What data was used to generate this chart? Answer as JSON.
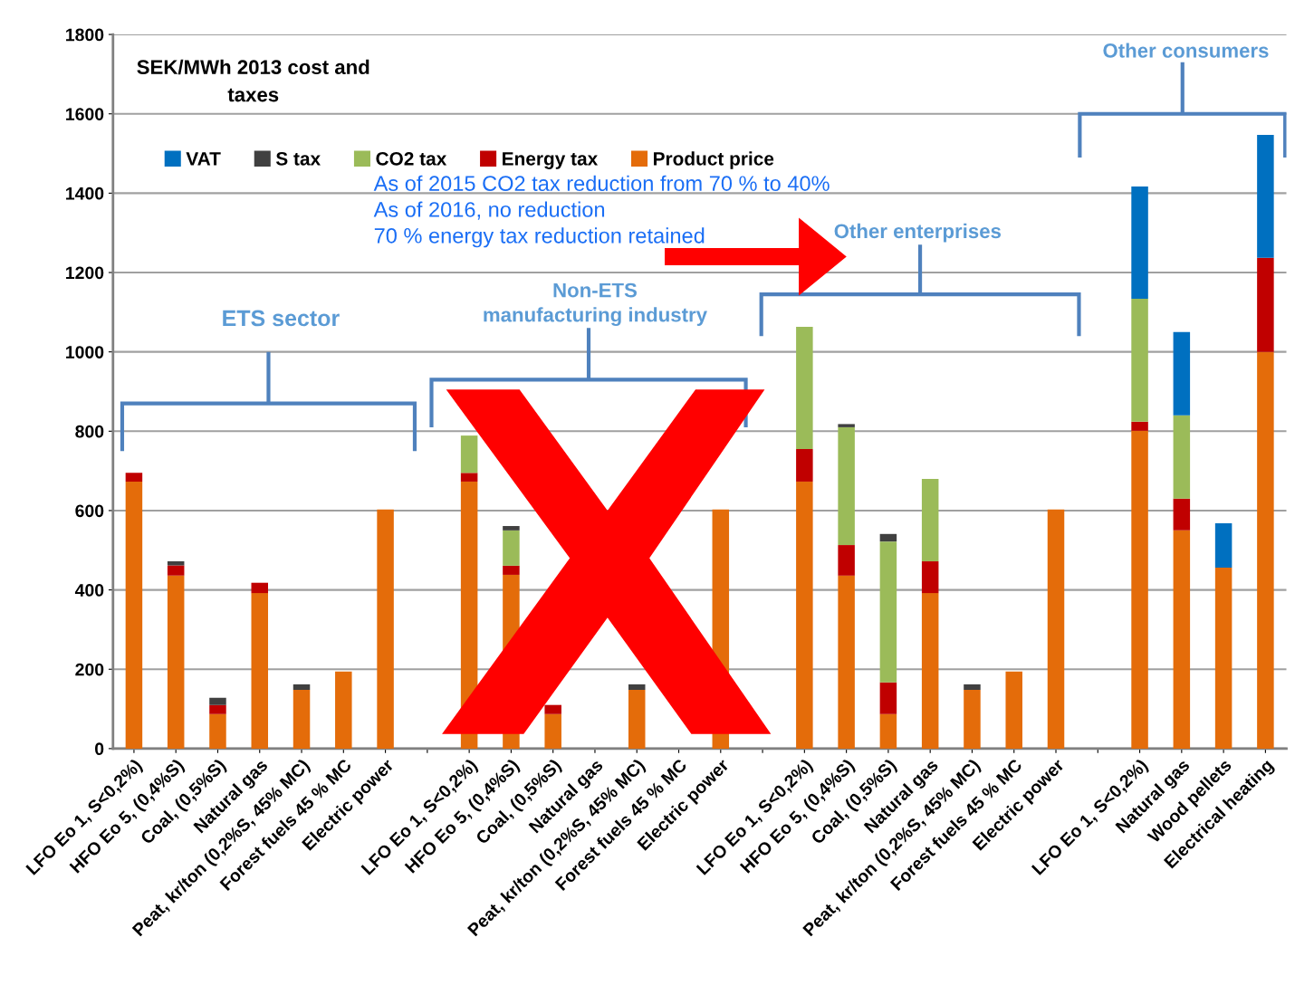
{
  "chart_data": {
    "type": "bar",
    "stacked": true,
    "title": "SEK/MWh 2013 cost and\ntaxes",
    "categories": [
      "LFO Eo 1, S<0,2%)",
      "HFO Eo 5, (0,4%S)",
      "Coal, (0,5%S)",
      "Natural gas",
      "Peat, kr/ton (0,2%S, 45% MC)",
      "Forest fuels 45 % MC",
      "Electric power",
      null,
      "LFO Eo 1, S<0,2%)",
      "HFO Eo 5, (0,4%S)",
      "Coal, (0,5%S)",
      "Natural gas",
      "Peat, kr/ton (0,2%S, 45% MC)",
      "Forest fuels 45 % MC",
      "Electric power",
      null,
      "LFO Eo 1, S<0,2%)",
      "HFO Eo 5, (0,4%S)",
      "Coal, (0,5%S)",
      "Natural gas",
      "Peat, kr/ton (0,2%S, 45% MC)",
      "Forest fuels 45 % MC",
      "Electric power",
      null,
      "LFO Eo 1, S<0,2%)",
      "Natural gas",
      "Wood pellets",
      "Electrical heating"
    ],
    "series": [
      {
        "name": "Product price",
        "color": "#e46c0a",
        "values": [
          673,
          436,
          87,
          392,
          148,
          194,
          603,
          null,
          673,
          438,
          87,
          null,
          148,
          null,
          603,
          null,
          673,
          436,
          87,
          392,
          148,
          194,
          603,
          null,
          801,
          550,
          456,
          1000
        ]
      },
      {
        "name": "Energy tax",
        "color": "#c00000",
        "values": [
          22,
          26,
          23,
          26,
          null,
          null,
          null,
          null,
          22,
          23,
          23,
          null,
          null,
          null,
          null,
          null,
          82,
          77,
          80,
          80,
          null,
          null,
          null,
          null,
          23,
          80,
          null,
          237
        ]
      },
      {
        "name": "CO2 tax",
        "color": "#9bbb59",
        "values": [
          null,
          null,
          null,
          null,
          null,
          null,
          null,
          null,
          94,
          89,
          null,
          null,
          null,
          null,
          null,
          null,
          308,
          297,
          355,
          208,
          null,
          null,
          null,
          null,
          310,
          210,
          null,
          null
        ]
      },
      {
        "name": "S tax",
        "color": "#404040",
        "values": [
          null,
          10,
          18,
          null,
          14,
          null,
          null,
          null,
          null,
          11,
          null,
          null,
          14,
          null,
          null,
          null,
          null,
          8,
          19,
          null,
          14,
          null,
          null,
          null,
          null,
          null,
          null,
          null
        ]
      },
      {
        "name": "VAT",
        "color": "#0070c0",
        "values": [
          null,
          null,
          null,
          null,
          null,
          null,
          null,
          null,
          null,
          null,
          null,
          null,
          null,
          null,
          null,
          null,
          null,
          null,
          null,
          null,
          null,
          null,
          null,
          null,
          283,
          210,
          112,
          310
        ]
      }
    ],
    "ylim": [
      0,
      1800
    ],
    "yticks": [
      0,
      200,
      400,
      600,
      800,
      1000,
      1200,
      1400,
      1600,
      1800
    ],
    "grid": "y",
    "legend": "top left",
    "annotations": [
      "As of 2015 CO2 tax reduction from 70 % to 40%\nAs of 2016, no reduction\n70 % energy tax reduction retained",
      "ETS sector",
      "Non-ETS\nmanufacturing industry",
      "Other enterprises",
      "Other consumers"
    ]
  }
}
